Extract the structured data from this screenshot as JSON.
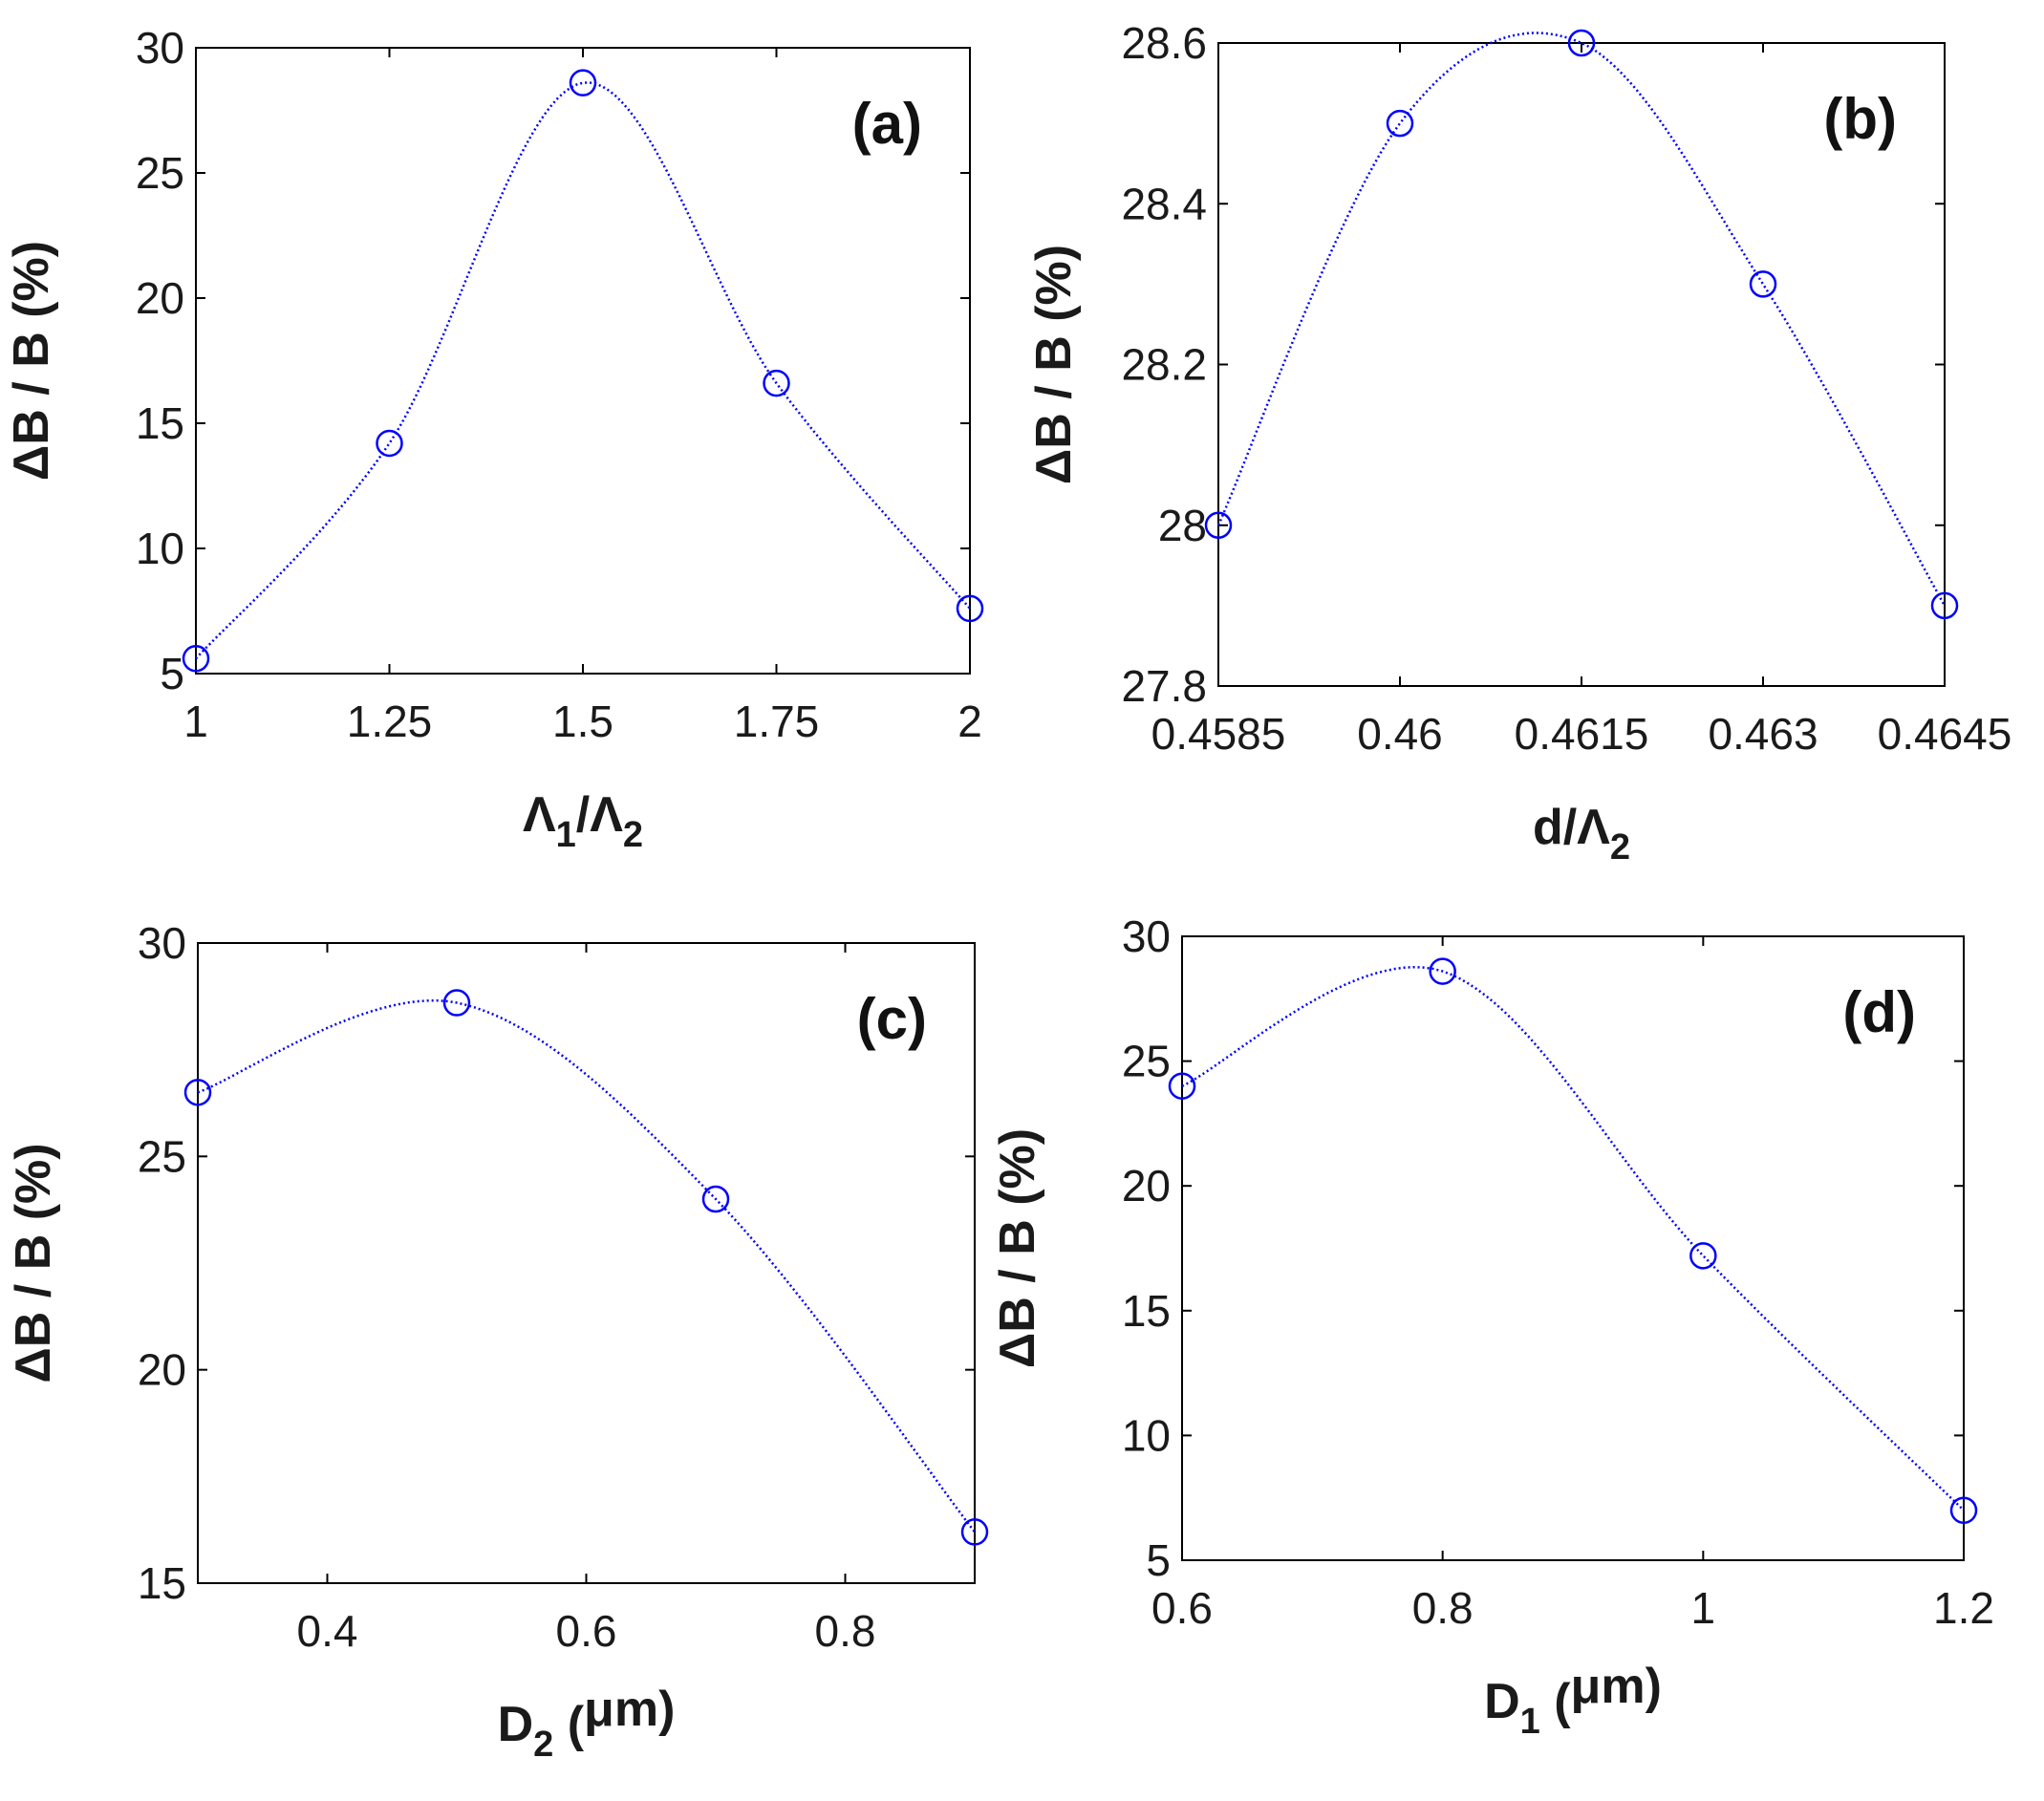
{
  "colors": {
    "series": "#0000ff",
    "axis": "#000000",
    "text": "#1a1a1a"
  },
  "chart_data": [
    {
      "type": "line",
      "panel_label": "(a)",
      "xlabel": {
        "main": "Λ",
        "sub": "1",
        "rest": "/Λ",
        "sub2": "2",
        "tail": ""
      },
      "ylabel": "ΔB / B (%)",
      "xlim": [
        1,
        2
      ],
      "ylim": [
        5,
        30
      ],
      "xticks": [
        1,
        1.25,
        1.5,
        1.75,
        2
      ],
      "xtick_labels": [
        "1",
        "1.25",
        "1.5",
        "1.75",
        "2"
      ],
      "yticks": [
        5,
        10,
        15,
        20,
        25,
        30
      ],
      "ytick_labels": [
        "5",
        "10",
        "15",
        "20",
        "25",
        "30"
      ],
      "x": [
        1,
        1.25,
        1.5,
        1.75,
        2
      ],
      "y": [
        5.6,
        14.2,
        28.6,
        16.6,
        7.6
      ],
      "curve": "spline",
      "marker": "circle"
    },
    {
      "type": "line",
      "panel_label": "(b)",
      "xlabel": {
        "main": "d/Λ",
        "sub": "2",
        "rest": "",
        "sub2": "",
        "tail": ""
      },
      "ylabel": "ΔB / B (%)",
      "xlim": [
        0.4585,
        0.4645
      ],
      "ylim": [
        27.8,
        28.6
      ],
      "xticks": [
        0.4585,
        0.46,
        0.4615,
        0.463,
        0.4645
      ],
      "xtick_labels": [
        "0.4585",
        "0.46",
        "0.4615",
        "0.463",
        "0.4645"
      ],
      "yticks": [
        27.8,
        28,
        28.2,
        28.4,
        28.6
      ],
      "ytick_labels": [
        "27.8",
        "28",
        "28.2",
        "28.4",
        "28.6"
      ],
      "x": [
        0.4585,
        0.46,
        0.4615,
        0.463,
        0.4645
      ],
      "y": [
        28.0,
        28.5,
        28.6,
        28.3,
        27.9
      ],
      "curve": "spline",
      "marker": "circle"
    },
    {
      "type": "line",
      "panel_label": "(c)",
      "xlabel": {
        "main": "D",
        "sub": "2",
        "rest": " (",
        "sub2": "",
        "tail": "μm)"
      },
      "ylabel": "ΔB / B (%)",
      "xlim": [
        0.3,
        0.9
      ],
      "ylim": [
        15,
        30
      ],
      "xticks": [
        0.4,
        0.6,
        0.8
      ],
      "xtick_labels": [
        "0.4",
        "0.6",
        "0.8"
      ],
      "yticks": [
        15,
        20,
        25,
        30
      ],
      "ytick_labels": [
        "15",
        "20",
        "25",
        "30"
      ],
      "x": [
        0.3,
        0.5,
        0.7,
        0.9
      ],
      "y": [
        26.5,
        28.6,
        24.0,
        16.2
      ],
      "curve": "spline",
      "marker": "circle"
    },
    {
      "type": "line",
      "panel_label": "(d)",
      "xlabel": {
        "main": "D",
        "sub": "1",
        "rest": " (",
        "sub2": "",
        "tail": "μm)"
      },
      "ylabel": "ΔB / B (%)",
      "xlim": [
        0.6,
        1.2
      ],
      "ylim": [
        5,
        30
      ],
      "xticks": [
        0.6,
        0.8,
        1,
        1.2
      ],
      "xtick_labels": [
        "0.6",
        "0.8",
        "1",
        "1.2"
      ],
      "yticks": [
        5,
        10,
        15,
        20,
        25,
        30
      ],
      "ytick_labels": [
        "5",
        "10",
        "15",
        "20",
        "25",
        "30"
      ],
      "x": [
        0.6,
        0.8,
        1.0,
        1.2
      ],
      "y": [
        24.0,
        28.6,
        17.2,
        7.0
      ],
      "curve": "spline",
      "marker": "circle"
    }
  ]
}
